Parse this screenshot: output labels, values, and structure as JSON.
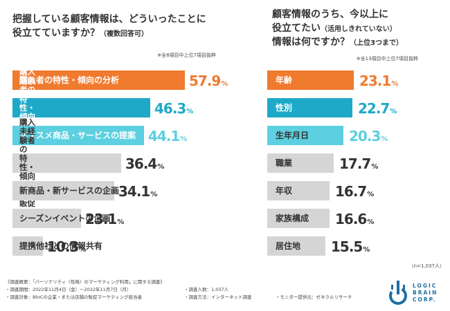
{
  "left": {
    "title_line1": "把握している顧客情報は、どういったことに",
    "title_line2": "役立てていますか？",
    "title_suffix": "（複数回答可）",
    "note": "※全8項目中上位7項目抜粋"
  },
  "right": {
    "title_line1": "顧客情報のうち、今以上に",
    "title_line2": "役立てたい",
    "title_line2_suffix": "（活用しきれていない）",
    "title_line3": "情報は何ですか？",
    "title_line3_suffix": "（上位3つまで）",
    "note": "※全13項目中上位7項目抜粋",
    "sample_size": "（n=1,037人）"
  },
  "colors": {
    "orange": "#f07a2e",
    "blue": "#1fa9c9",
    "teal": "#5ccfe0",
    "gray": "#d5d5d5",
    "dark_text": "#333333",
    "white": "#ffffff"
  },
  "chart_data": [
    {
      "type": "bar",
      "orientation": "horizontal",
      "unit": "%",
      "categories": [
        "購入者の特性・傾向の分析",
        "購入経験者の\n特性・傾向に応じた販促",
        "オススメ商品・サービスの提案",
        "購入未経験者の\n特性・傾向に応じた販促",
        "新商品・新サービスの企画",
        "シーズンイベントの企画",
        "提携他社との情報共有"
      ],
      "values": [
        57.9,
        46.3,
        44.1,
        36.4,
        34.1,
        23.1,
        10.3
      ],
      "value_labels": [
        {
          "big": "57.9",
          "pct": "%"
        },
        {
          "big": "46.3",
          "pct": "%"
        },
        {
          "big": "44.1",
          "pct": "%"
        },
        {
          "big": "36.4",
          "pct": "%"
        },
        {
          "big": "34.1",
          "pct": "%"
        },
        {
          "big": "23.1",
          "pct": "%"
        },
        {
          "big": "10.3",
          "pct": "%"
        }
      ],
      "bar_colors": [
        "#f07a2e",
        "#1fa9c9",
        "#5ccfe0",
        "#d5d5d5",
        "#d5d5d5",
        "#d5d5d5",
        "#d5d5d5"
      ],
      "label_colors": [
        "#ffffff",
        "#ffffff",
        "#ffffff",
        "#333333",
        "#333333",
        "#333333",
        "#333333"
      ],
      "value_colors": [
        "#f07a2e",
        "#1fa9c9",
        "#5ccfe0",
        "#333333",
        "#333333",
        "#333333",
        "#333333"
      ],
      "xlim": [
        0,
        70
      ]
    },
    {
      "type": "bar",
      "orientation": "horizontal",
      "unit": "%",
      "categories": [
        "年齢",
        "性別",
        "生年月日",
        "職業",
        "年収",
        "家族構成",
        "居住地"
      ],
      "values": [
        23.1,
        22.7,
        20.3,
        17.7,
        16.7,
        16.6,
        15.5
      ],
      "value_labels": [
        {
          "big": "23.1",
          "pct": "%"
        },
        {
          "big": "22.7",
          "pct": "%"
        },
        {
          "big": "20.3",
          "pct": "%"
        },
        {
          "big": "17.7",
          "pct": "%"
        },
        {
          "big": "16.7",
          "pct": "%"
        },
        {
          "big": "16.6",
          "pct": "%"
        },
        {
          "big": "15.5",
          "pct": "%"
        }
      ],
      "bar_colors": [
        "#f07a2e",
        "#1fa9c9",
        "#5ccfe0",
        "#d5d5d5",
        "#d5d5d5",
        "#d5d5d5",
        "#d5d5d5"
      ],
      "label_colors": [
        "#ffffff",
        "#ffffff",
        "#333333",
        "#333333",
        "#333333",
        "#333333",
        "#333333"
      ],
      "value_colors": [
        "#f07a2e",
        "#1fa9c9",
        "#5ccfe0",
        "#333333",
        "#333333",
        "#333333",
        "#333333"
      ],
      "xlim": [
        0,
        37
      ]
    }
  ],
  "footer": {
    "line1": "《調査概要：「パーソナリティ〈性格〉のマーケティング利用」に関する調査》",
    "period": "・調査期間：2022年11月4日（金）〜2022年11月7日（月）",
    "count": "・調査人数：1,037人",
    "target": "・調査対象：BtoCの企業・または店舗の販促マーケティング担当者",
    "method": "・調査方法：インターネット調査",
    "provider": "・モニター提供元：ゼネラルリサーチ"
  },
  "logo": {
    "text": "LOGIC\nBRAIN\nCORP.",
    "icon": "logic-brain-logo-icon"
  }
}
